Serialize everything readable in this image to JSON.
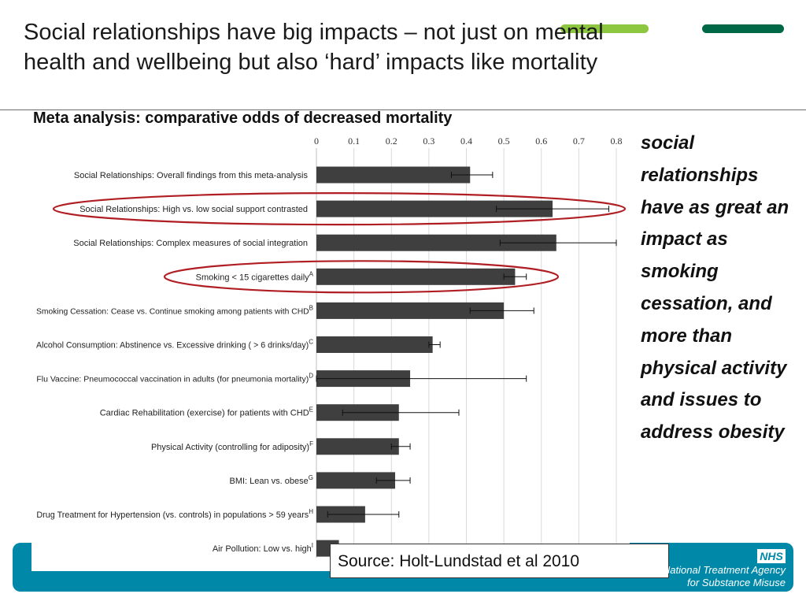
{
  "slide": {
    "title_line1": "Social relationships have big impacts – not just on mental",
    "title_line2": "health and wellbeing but also ‘hard’ impacts like mortality",
    "callout_text": "social relationships have as great an impact as smoking cessation, and more than physical activity and issues to address obesity",
    "source_text": "Source: Holt-Lundstad et al 2010",
    "logo_text": "NHS",
    "org_line1": "National Treatment Agency",
    "org_line2": "for Substance Misuse"
  },
  "colors": {
    "bar": "#3f3f3f",
    "highlight_ellipse": "#b01e23",
    "accent_green_light": "#8dc63f",
    "accent_green_dark": "#006747",
    "footer_teal": "#0088a8"
  },
  "chart_data": {
    "type": "bar",
    "orientation": "horizontal",
    "title": "Meta analysis: comparative odds of decreased mortality",
    "xlabel": "",
    "ylabel": "",
    "xlim": [
      0,
      0.8
    ],
    "xticks": [
      "0",
      "0.1",
      "0.2",
      "0.3",
      "0.4",
      "0.5",
      "0.6",
      "0.7",
      "0.8"
    ],
    "grid": true,
    "error_bars": true,
    "highlighted_categories": [
      1,
      3
    ],
    "categories": [
      {
        "label": "Social Relationships: Overall findings from this meta-analysis",
        "superscript": "",
        "value": 0.41,
        "err_low": 0.36,
        "err_high": 0.47
      },
      {
        "label": "Social Relationships: High vs. low social support contrasted",
        "superscript": "",
        "value": 0.63,
        "err_low": 0.48,
        "err_high": 0.78
      },
      {
        "label": "Social Relationships: Complex measures of social integration",
        "superscript": "",
        "value": 0.64,
        "err_low": 0.49,
        "err_high": 0.8
      },
      {
        "label": "Smoking < 15 cigarettes daily",
        "superscript": "A",
        "value": 0.53,
        "err_low": 0.5,
        "err_high": 0.56
      },
      {
        "label": "Smoking Cessation: Cease vs. Continue smoking among patients with CHD",
        "superscript": "B",
        "value": 0.5,
        "err_low": 0.41,
        "err_high": 0.58
      },
      {
        "label": "Alcohol Consumption: Abstinence vs. Excessive drinking ( > 6 drinks/day)",
        "superscript": "C",
        "value": 0.31,
        "err_low": 0.3,
        "err_high": 0.33
      },
      {
        "label": "Flu Vaccine: Pneumococcal vaccination in adults (for pneumonia mortality)",
        "superscript": "D",
        "value": 0.25,
        "err_low": 0.0,
        "err_high": 0.56
      },
      {
        "label": "Cardiac Rehabilitation (exercise) for patients with CHD",
        "superscript": "E",
        "value": 0.22,
        "err_low": 0.07,
        "err_high": 0.38
      },
      {
        "label": "Physical Activity (controlling for adiposity)",
        "superscript": "F",
        "value": 0.22,
        "err_low": 0.2,
        "err_high": 0.25
      },
      {
        "label": "BMI: Lean vs. obese",
        "superscript": "G",
        "value": 0.21,
        "err_low": 0.16,
        "err_high": 0.25
      },
      {
        "label": "Drug Treatment for Hypertension (vs. controls) in populations > 59 years",
        "superscript": "H",
        "value": 0.13,
        "err_low": 0.03,
        "err_high": 0.22
      },
      {
        "label": "Air Pollution: Low vs. high",
        "superscript": "I",
        "value": 0.06,
        "err_low": 0.04,
        "err_high": 0.07
      }
    ]
  }
}
